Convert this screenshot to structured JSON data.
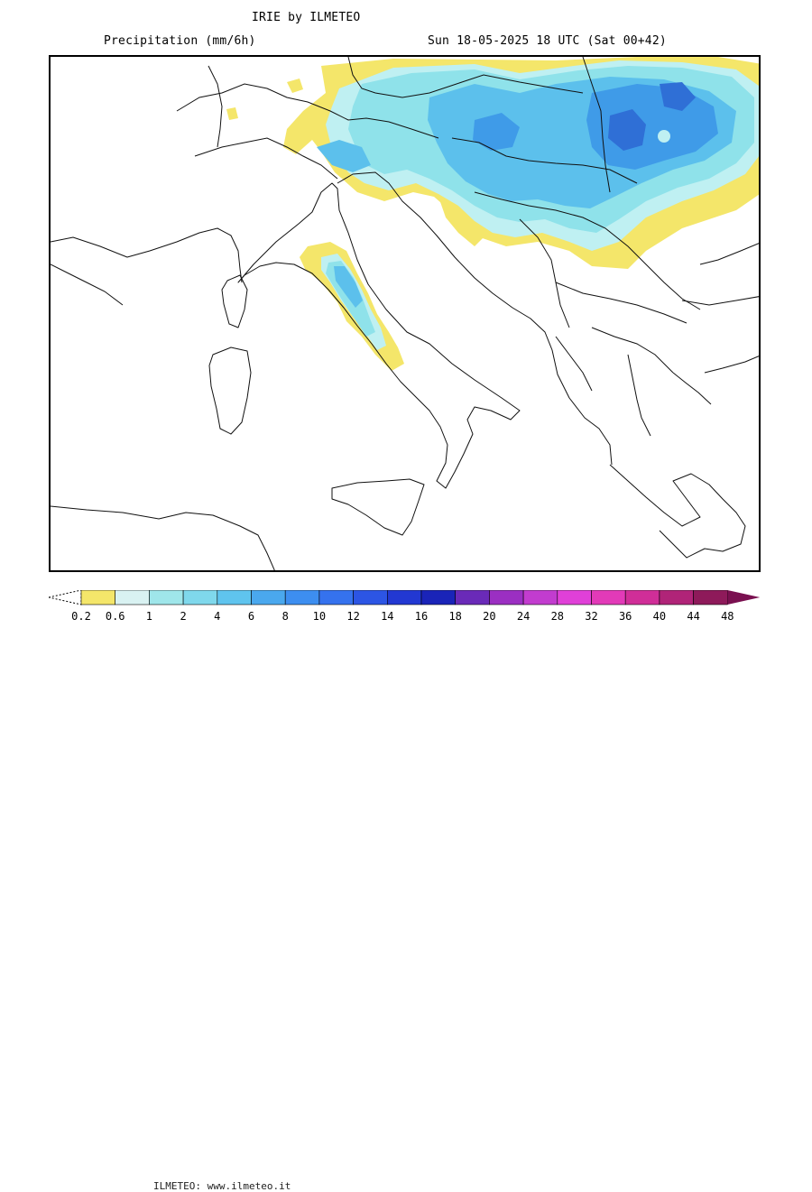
{
  "header": {
    "title": "IRIE by ILMETEO",
    "subtitle_left": "Precipitation (mm/6h)",
    "subtitle_right": "Sun 18-05-2025 18 UTC (Sat 00+42)"
  },
  "legend": {
    "watermark": "ILMETEO: www.ilmeteo.it",
    "ticks": [
      "0.2",
      "0.6",
      "1",
      "2",
      "4",
      "6",
      "8",
      "10",
      "12",
      "14",
      "16",
      "18",
      "20",
      "24",
      "28",
      "32",
      "36",
      "40",
      "44",
      "48"
    ],
    "colors": [
      "#f4e66a",
      "#d9f2f2",
      "#9fe6ea",
      "#7fd8ec",
      "#5fc4ee",
      "#4aa8ee",
      "#3d8ef0",
      "#3572ee",
      "#2c55e4",
      "#2238d2",
      "#1a24b8",
      "#6a2ab8",
      "#9b2fc2",
      "#c23ccf",
      "#e040d8",
      "#e23ab8",
      "#d02e98",
      "#b02478",
      "#8e1a5a"
    ]
  },
  "map": {
    "region": "Italy and Central Europe / Balkans",
    "colors": {
      "yellow": "#f4e66a",
      "light_cyan": "#bff0f2",
      "cyan": "#8fe2ea",
      "blue_light": "#5cc0ec",
      "blue": "#3f9be8",
      "blue_dark": "#2f6fd6"
    }
  }
}
